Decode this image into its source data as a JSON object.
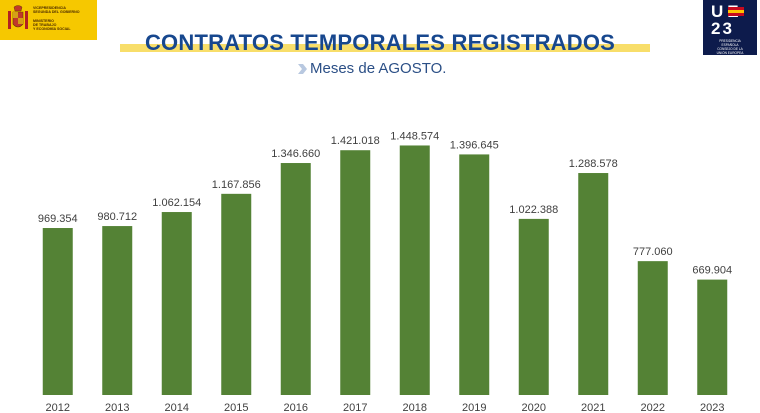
{
  "header": {
    "gov_logo_lines": [
      "VICEPRESIDENCIA",
      "SEGUNDA DEL GOBIERNO",
      "",
      "MINISTERIO",
      "DE TRABAJO",
      "Y ECONOMÍA SOCIAL"
    ],
    "ue_logo": {
      "top": "UE",
      "bottom": "23",
      "caption_lines": [
        "PRESIDENCIA",
        "ESPAÑOLA",
        "CONSEJO DE LA",
        "UNIÓN EUROPEA"
      ]
    }
  },
  "chart_data": {
    "type": "bar",
    "title": "CONTRATOS TEMPORALES REGISTRADOS",
    "subtitle": "Meses de AGOSTO.",
    "categories": [
      "2012",
      "2013",
      "2014",
      "2015",
      "2016",
      "2017",
      "2018",
      "2019",
      "2020",
      "2021",
      "2022",
      "2023"
    ],
    "values": [
      969354,
      980712,
      1062154,
      1167856,
      1346660,
      1421018,
      1448574,
      1396645,
      1022388,
      1288578,
      777060,
      669904
    ],
    "value_labels": [
      "969.354",
      "980.712",
      "1.062.154",
      "1.167.856",
      "1.346.660",
      "1.421.018",
      "1.448.574",
      "1.396.645",
      "1.022.388",
      "1.288.578",
      "777.060",
      "669.904"
    ],
    "bar_color": "#548235",
    "ylim": [
      0,
      1550000
    ],
    "grid": false,
    "xlabel": "",
    "ylabel": ""
  }
}
